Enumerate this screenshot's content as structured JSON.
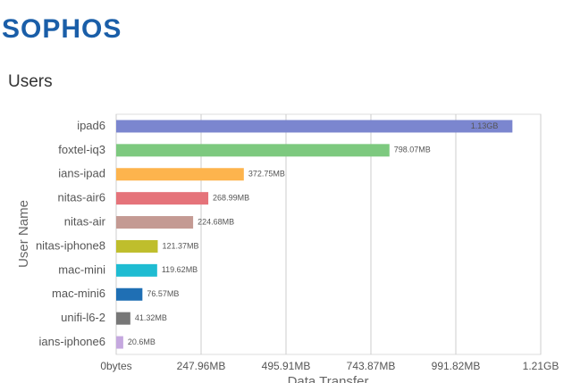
{
  "header": {
    "logo": "SOPHOS",
    "section": "Users"
  },
  "chart_data": {
    "type": "hbar",
    "xlabel": "Data Transfer",
    "ylabel": "User Name",
    "categories": [
      "ipad6",
      "foxtel-iq3",
      "ians-ipad",
      "nitas-air6",
      "nitas-air",
      "nitas-iphone8",
      "mac-mini",
      "mac-mini6",
      "unifi-l6-2",
      "ians-iphone6"
    ],
    "values": [
      1157.12,
      798.07,
      372.75,
      268.99,
      224.68,
      121.37,
      119.62,
      76.57,
      41.32,
      20.6
    ],
    "value_labels": [
      "1.13GB",
      "798.07MB",
      "372.75MB",
      "268.99MB",
      "224.68MB",
      "121.37MB",
      "119.62MB",
      "76.57MB",
      "41.32MB",
      "20.6MB"
    ],
    "colors": [
      "#7b86cf",
      "#7dc97f",
      "#fdb44d",
      "#e5737a",
      "#c49a93",
      "#bfbe2c",
      "#1fbcd2",
      "#1f6fb4",
      "#777777",
      "#c5a8df"
    ],
    "xlim": [
      0,
      1239.78
    ],
    "xticks": [
      {
        "value": 0,
        "label": "0bytes"
      },
      {
        "value": 247.96,
        "label": "247.96MB"
      },
      {
        "value": 495.91,
        "label": "495.91MB"
      },
      {
        "value": 743.87,
        "label": "743.87MB"
      },
      {
        "value": 991.82,
        "label": "991.82MB"
      },
      {
        "value": 1239.78,
        "label": "1.21GB"
      }
    ],
    "grid": true
  }
}
